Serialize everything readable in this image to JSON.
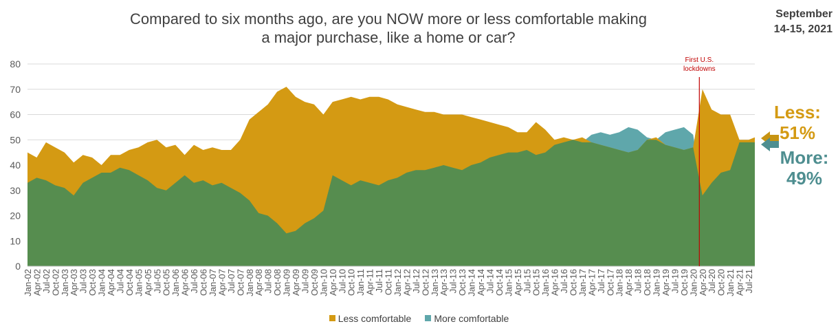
{
  "title_line1": "Compared to six months ago, are you NOW more or less comfortable making",
  "title_line2": "a major purchase, like a home or car?",
  "date_line1": "September",
  "date_line2": "14-15, 2021",
  "callouts": {
    "less_label": "Less:",
    "less_value": "51%",
    "more_label": "More:",
    "more_value": "49%"
  },
  "colors": {
    "less": "#D49A13",
    "more_overlap": "#568D4F",
    "more": "#5FA7AB",
    "arrow_less": "#C79412",
    "arrow_more": "#4E8E90",
    "grid": "#D9D9D9",
    "axis_text": "#595959",
    "annotation": "#C00000"
  },
  "legend": [
    {
      "label": "Less comfortable",
      "color": "#D49A13"
    },
    {
      "label": "More comfortable",
      "color": "#5FA7AB"
    }
  ],
  "chart_data": {
    "type": "area",
    "title": "Compared to six months ago, are you NOW more or less comfortable making a major purchase, like a home or car?",
    "ylim": [
      0,
      80
    ],
    "yticks": [
      0,
      10,
      20,
      30,
      40,
      50,
      60,
      70,
      80
    ],
    "grid": true,
    "legend_position": "bottom",
    "x_start": "2002-01",
    "x_end": "2021-09",
    "tick_labels": [
      "Jan-02",
      "Apr-02",
      "Jul-02",
      "Oct-02",
      "Jan-03",
      "Apr-03",
      "Jul-03",
      "Oct-03",
      "Jan-04",
      "Apr-04",
      "Jul-04",
      "Oct-04",
      "Jan-05",
      "Apr-05",
      "Jul-05",
      "Oct-05",
      "Jan-06",
      "Apr-06",
      "Jul-06",
      "Oct-06",
      "Jan-07",
      "Apr-07",
      "Jul-07",
      "Oct-07",
      "Jan-08",
      "Apr-08",
      "Jul-08",
      "Oct-08",
      "Jan-09",
      "Apr-09",
      "Jul-09",
      "Oct-09",
      "Jan-10",
      "Apr-10",
      "Jul-10",
      "Oct-10",
      "Jan-11",
      "Apr-11",
      "Jul-11",
      "Oct-11",
      "Jan-12",
      "Apr-12",
      "Jul-12",
      "Oct-12",
      "Jan-13",
      "Apr-13",
      "Jul-13",
      "Oct-13",
      "Jan-14",
      "Apr-14",
      "Jul-14",
      "Oct-14",
      "Jan-15",
      "Apr-15",
      "Jul-15",
      "Oct-15",
      "Jan-16",
      "Apr-16",
      "Jul-16",
      "Oct-16",
      "Jan-17",
      "Apr-17",
      "Jul-17",
      "Oct-17",
      "Jan-18",
      "Apr-18",
      "Jul-18",
      "Oct-18",
      "Jan-19",
      "Apr-19",
      "Jul-19",
      "Oct-19",
      "Jan-20",
      "Apr-20",
      "Jul-20",
      "Oct-20",
      "Jan-21",
      "Apr-21",
      "Jul-21"
    ],
    "annotation": {
      "text_line1": "First U.S.",
      "text_line2": "lockdowns",
      "x": "2020-03"
    },
    "series": [
      {
        "name": "Less comfortable",
        "points": [
          [
            "2002-01",
            45
          ],
          [
            "2002-04",
            43
          ],
          [
            "2002-07",
            49
          ],
          [
            "2002-10",
            47
          ],
          [
            "2003-01",
            45
          ],
          [
            "2003-04",
            41
          ],
          [
            "2003-07",
            44
          ],
          [
            "2003-10",
            43
          ],
          [
            "2004-01",
            40
          ],
          [
            "2004-04",
            44
          ],
          [
            "2004-07",
            44
          ],
          [
            "2004-10",
            46
          ],
          [
            "2005-01",
            47
          ],
          [
            "2005-04",
            49
          ],
          [
            "2005-07",
            50
          ],
          [
            "2005-10",
            47
          ],
          [
            "2006-01",
            48
          ],
          [
            "2006-04",
            44
          ],
          [
            "2006-07",
            48
          ],
          [
            "2006-10",
            46
          ],
          [
            "2007-01",
            47
          ],
          [
            "2007-04",
            46
          ],
          [
            "2007-07",
            46
          ],
          [
            "2007-10",
            50
          ],
          [
            "2008-01",
            58
          ],
          [
            "2008-04",
            61
          ],
          [
            "2008-07",
            64
          ],
          [
            "2008-10",
            69
          ],
          [
            "2009-01",
            71
          ],
          [
            "2009-04",
            67
          ],
          [
            "2009-07",
            65
          ],
          [
            "2009-10",
            64
          ],
          [
            "2010-01",
            60
          ],
          [
            "2010-04",
            65
          ],
          [
            "2010-07",
            66
          ],
          [
            "2010-10",
            67
          ],
          [
            "2011-01",
            66
          ],
          [
            "2011-04",
            67
          ],
          [
            "2011-07",
            67
          ],
          [
            "2011-10",
            66
          ],
          [
            "2012-01",
            64
          ],
          [
            "2012-04",
            63
          ],
          [
            "2012-07",
            62
          ],
          [
            "2012-10",
            61
          ],
          [
            "2013-01",
            61
          ],
          [
            "2013-04",
            60
          ],
          [
            "2013-07",
            60
          ],
          [
            "2013-10",
            60
          ],
          [
            "2014-01",
            59
          ],
          [
            "2014-04",
            58
          ],
          [
            "2014-07",
            57
          ],
          [
            "2014-10",
            56
          ],
          [
            "2015-01",
            55
          ],
          [
            "2015-04",
            53
          ],
          [
            "2015-07",
            53
          ],
          [
            "2015-10",
            57
          ],
          [
            "2016-01",
            54
          ],
          [
            "2016-04",
            50
          ],
          [
            "2016-07",
            51
          ],
          [
            "2016-10",
            50
          ],
          [
            "2017-01",
            51
          ],
          [
            "2017-04",
            49
          ],
          [
            "2017-07",
            48
          ],
          [
            "2017-10",
            47
          ],
          [
            "2018-01",
            46
          ],
          [
            "2018-04",
            45
          ],
          [
            "2018-07",
            46
          ],
          [
            "2018-10",
            50
          ],
          [
            "2019-01",
            51
          ],
          [
            "2019-04",
            48
          ],
          [
            "2019-07",
            47
          ],
          [
            "2019-10",
            46
          ],
          [
            "2020-01",
            47
          ],
          [
            "2020-04",
            70
          ],
          [
            "2020-07",
            62
          ],
          [
            "2020-10",
            60
          ],
          [
            "2021-01",
            60
          ],
          [
            "2021-04",
            50
          ],
          [
            "2021-07",
            50
          ],
          [
            "2021-09",
            51
          ]
        ]
      },
      {
        "name": "More comfortable",
        "points": [
          [
            "2002-01",
            33
          ],
          [
            "2002-04",
            35
          ],
          [
            "2002-07",
            34
          ],
          [
            "2002-10",
            32
          ],
          [
            "2003-01",
            31
          ],
          [
            "2003-04",
            28
          ],
          [
            "2003-07",
            33
          ],
          [
            "2003-10",
            35
          ],
          [
            "2004-01",
            37
          ],
          [
            "2004-04",
            37
          ],
          [
            "2004-07",
            39
          ],
          [
            "2004-10",
            38
          ],
          [
            "2005-01",
            36
          ],
          [
            "2005-04",
            34
          ],
          [
            "2005-07",
            31
          ],
          [
            "2005-10",
            30
          ],
          [
            "2006-01",
            33
          ],
          [
            "2006-04",
            36
          ],
          [
            "2006-07",
            33
          ],
          [
            "2006-10",
            34
          ],
          [
            "2007-01",
            32
          ],
          [
            "2007-04",
            33
          ],
          [
            "2007-07",
            31
          ],
          [
            "2007-10",
            29
          ],
          [
            "2008-01",
            26
          ],
          [
            "2008-04",
            21
          ],
          [
            "2008-07",
            20
          ],
          [
            "2008-10",
            17
          ],
          [
            "2009-01",
            13
          ],
          [
            "2009-04",
            14
          ],
          [
            "2009-07",
            17
          ],
          [
            "2009-10",
            19
          ],
          [
            "2010-01",
            22
          ],
          [
            "2010-04",
            36
          ],
          [
            "2010-07",
            34
          ],
          [
            "2010-10",
            32
          ],
          [
            "2011-01",
            34
          ],
          [
            "2011-04",
            33
          ],
          [
            "2011-07",
            32
          ],
          [
            "2011-10",
            34
          ],
          [
            "2012-01",
            35
          ],
          [
            "2012-04",
            37
          ],
          [
            "2012-07",
            38
          ],
          [
            "2012-10",
            38
          ],
          [
            "2013-01",
            39
          ],
          [
            "2013-04",
            40
          ],
          [
            "2013-07",
            39
          ],
          [
            "2013-10",
            38
          ],
          [
            "2014-01",
            40
          ],
          [
            "2014-04",
            41
          ],
          [
            "2014-07",
            43
          ],
          [
            "2014-10",
            44
          ],
          [
            "2015-01",
            45
          ],
          [
            "2015-04",
            45
          ],
          [
            "2015-07",
            46
          ],
          [
            "2015-10",
            44
          ],
          [
            "2016-01",
            45
          ],
          [
            "2016-04",
            48
          ],
          [
            "2016-07",
            49
          ],
          [
            "2016-10",
            50
          ],
          [
            "2017-01",
            49
          ],
          [
            "2017-04",
            52
          ],
          [
            "2017-07",
            53
          ],
          [
            "2017-10",
            52
          ],
          [
            "2018-01",
            53
          ],
          [
            "2018-04",
            55
          ],
          [
            "2018-07",
            54
          ],
          [
            "2018-10",
            51
          ],
          [
            "2019-01",
            50
          ],
          [
            "2019-04",
            53
          ],
          [
            "2019-07",
            54
          ],
          [
            "2019-10",
            55
          ],
          [
            "2020-01",
            52
          ],
          [
            "2020-04",
            28
          ],
          [
            "2020-07",
            33
          ],
          [
            "2020-10",
            37
          ],
          [
            "2021-01",
            38
          ],
          [
            "2021-04",
            49
          ],
          [
            "2021-07",
            49
          ],
          [
            "2021-09",
            49
          ]
        ]
      }
    ]
  }
}
